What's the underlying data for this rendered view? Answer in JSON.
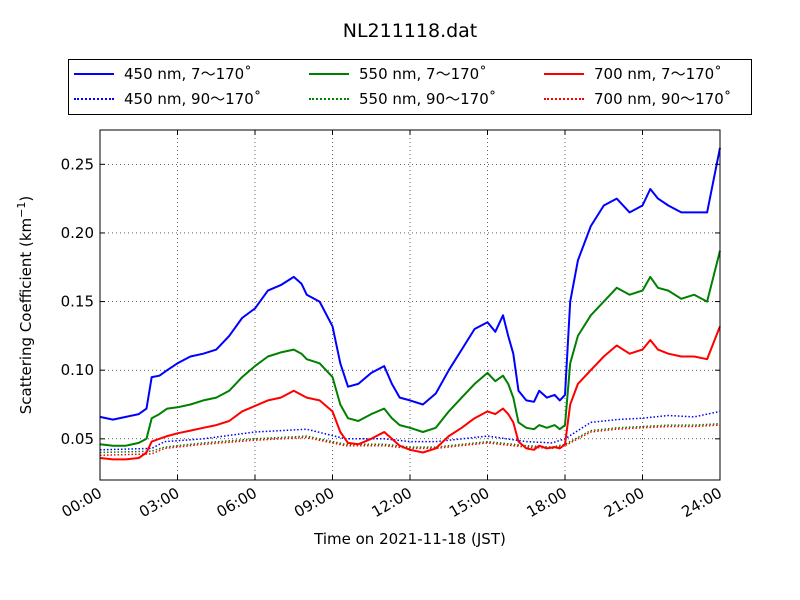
{
  "chart_data": {
    "type": "line",
    "title": "NL211118.dat",
    "xlabel": "Time on 2021-11-18 (JST)",
    "ylabel": "Scattering Coefficient (km",
    "ylabel_sup": "−1",
    "ylabel_end": ")",
    "xlim": [
      0,
      24
    ],
    "ylim": [
      0.02,
      0.275
    ],
    "x_ticks": [
      0,
      3,
      6,
      9,
      12,
      15,
      18,
      21,
      24
    ],
    "x_tick_labels": [
      "00:00",
      "03:00",
      "06:00",
      "09:00",
      "12:00",
      "15:00",
      "18:00",
      "21:00",
      "24:00"
    ],
    "y_ticks": [
      0.05,
      0.1,
      0.15,
      0.2,
      0.25
    ],
    "y_tick_labels": [
      "0.05",
      "0.10",
      "0.15",
      "0.20",
      "0.25"
    ],
    "grid": true,
    "legend_position": "top",
    "series": [
      {
        "name": "450 nm, 7～170˚",
        "color": "#0000ff",
        "style": "solid",
        "x": [
          0,
          0.5,
          1,
          1.5,
          1.8,
          2,
          2.3,
          2.6,
          3,
          3.5,
          4,
          4.5,
          5,
          5.5,
          6,
          6.5,
          7,
          7.5,
          7.8,
          8,
          8.5,
          9,
          9.3,
          9.6,
          10,
          10.5,
          11,
          11.3,
          11.6,
          12,
          12.5,
          13,
          13.5,
          14,
          14.5,
          15,
          15.3,
          15.6,
          15.8,
          16,
          16.2,
          16.5,
          16.8,
          17,
          17.3,
          17.6,
          17.8,
          18,
          18.2,
          18.5,
          19,
          19.5,
          20,
          20.5,
          21,
          21.3,
          21.6,
          22,
          22.5,
          23,
          23.5,
          24
        ],
        "y": [
          0.066,
          0.064,
          0.066,
          0.068,
          0.072,
          0.095,
          0.096,
          0.1,
          0.105,
          0.11,
          0.112,
          0.115,
          0.125,
          0.138,
          0.145,
          0.158,
          0.162,
          0.168,
          0.163,
          0.155,
          0.15,
          0.132,
          0.105,
          0.088,
          0.09,
          0.098,
          0.103,
          0.09,
          0.08,
          0.078,
          0.075,
          0.083,
          0.1,
          0.115,
          0.13,
          0.135,
          0.128,
          0.14,
          0.125,
          0.112,
          0.085,
          0.078,
          0.077,
          0.085,
          0.08,
          0.082,
          0.078,
          0.082,
          0.15,
          0.18,
          0.205,
          0.22,
          0.225,
          0.215,
          0.22,
          0.232,
          0.225,
          0.22,
          0.215,
          0.215,
          0.215,
          0.262
        ]
      },
      {
        "name": "550 nm, 7～170˚",
        "color": "#008000",
        "style": "solid",
        "x": [
          0,
          0.5,
          1,
          1.5,
          1.8,
          2,
          2.3,
          2.6,
          3,
          3.5,
          4,
          4.5,
          5,
          5.5,
          6,
          6.5,
          7,
          7.5,
          7.8,
          8,
          8.5,
          9,
          9.3,
          9.6,
          10,
          10.5,
          11,
          11.3,
          11.6,
          12,
          12.5,
          13,
          13.5,
          14,
          14.5,
          15,
          15.3,
          15.6,
          15.8,
          16,
          16.2,
          16.5,
          16.8,
          17,
          17.3,
          17.6,
          17.8,
          18,
          18.2,
          18.5,
          19,
          19.5,
          20,
          20.5,
          21,
          21.3,
          21.6,
          22,
          22.5,
          23,
          23.5,
          24
        ],
        "y": [
          0.046,
          0.045,
          0.045,
          0.047,
          0.05,
          0.065,
          0.068,
          0.072,
          0.073,
          0.075,
          0.078,
          0.08,
          0.085,
          0.095,
          0.103,
          0.11,
          0.113,
          0.115,
          0.112,
          0.108,
          0.105,
          0.095,
          0.075,
          0.065,
          0.063,
          0.068,
          0.072,
          0.065,
          0.06,
          0.058,
          0.055,
          0.058,
          0.07,
          0.08,
          0.09,
          0.098,
          0.092,
          0.096,
          0.09,
          0.08,
          0.062,
          0.058,
          0.057,
          0.06,
          0.058,
          0.06,
          0.057,
          0.06,
          0.105,
          0.125,
          0.14,
          0.15,
          0.16,
          0.155,
          0.158,
          0.168,
          0.16,
          0.158,
          0.152,
          0.155,
          0.15,
          0.187
        ]
      },
      {
        "name": "700 nm, 7～170˚",
        "color": "#ff0000",
        "style": "solid",
        "x": [
          0,
          0.5,
          1,
          1.5,
          1.8,
          2,
          2.3,
          2.6,
          3,
          3.5,
          4,
          4.5,
          5,
          5.5,
          6,
          6.5,
          7,
          7.5,
          7.8,
          8,
          8.5,
          9,
          9.3,
          9.6,
          10,
          10.5,
          11,
          11.3,
          11.6,
          12,
          12.5,
          13,
          13.5,
          14,
          14.5,
          15,
          15.3,
          15.6,
          15.8,
          16,
          16.2,
          16.5,
          16.8,
          17,
          17.3,
          17.6,
          17.8,
          18,
          18.2,
          18.5,
          19,
          19.5,
          20,
          20.5,
          21,
          21.3,
          21.6,
          22,
          22.5,
          23,
          23.5,
          24
        ],
        "y": [
          0.036,
          0.035,
          0.035,
          0.036,
          0.04,
          0.048,
          0.05,
          0.052,
          0.054,
          0.056,
          0.058,
          0.06,
          0.063,
          0.07,
          0.074,
          0.078,
          0.08,
          0.085,
          0.082,
          0.08,
          0.078,
          0.07,
          0.055,
          0.047,
          0.046,
          0.05,
          0.055,
          0.05,
          0.045,
          0.042,
          0.04,
          0.043,
          0.052,
          0.058,
          0.065,
          0.07,
          0.068,
          0.072,
          0.068,
          0.062,
          0.048,
          0.043,
          0.042,
          0.045,
          0.043,
          0.044,
          0.043,
          0.046,
          0.075,
          0.09,
          0.1,
          0.11,
          0.118,
          0.112,
          0.115,
          0.122,
          0.115,
          0.112,
          0.11,
          0.11,
          0.108,
          0.132
        ]
      },
      {
        "name": "450 nm, 90～170˚",
        "color": "#0000ff",
        "style": "dotted",
        "x": [
          0,
          2,
          2.5,
          4,
          6,
          8,
          9.5,
          11,
          12,
          13,
          15,
          16.5,
          17.5,
          18,
          19,
          20,
          21,
          22,
          23,
          24
        ],
        "y": [
          0.042,
          0.043,
          0.048,
          0.05,
          0.055,
          0.057,
          0.05,
          0.05,
          0.048,
          0.048,
          0.052,
          0.048,
          0.047,
          0.05,
          0.062,
          0.064,
          0.065,
          0.067,
          0.066,
          0.07
        ]
      },
      {
        "name": "550 nm, 90～170˚",
        "color": "#008000",
        "style": "dotted",
        "x": [
          0,
          2,
          2.5,
          4,
          6,
          8,
          9.5,
          11,
          12,
          13,
          15,
          16.5,
          17.5,
          18,
          19,
          20,
          21,
          22,
          23,
          24
        ],
        "y": [
          0.04,
          0.041,
          0.044,
          0.047,
          0.05,
          0.052,
          0.046,
          0.046,
          0.044,
          0.044,
          0.048,
          0.045,
          0.044,
          0.046,
          0.056,
          0.058,
          0.059,
          0.06,
          0.06,
          0.061
        ]
      },
      {
        "name": "700 nm, 90～170˚",
        "color": "#ff0000",
        "style": "dotted",
        "x": [
          0,
          2,
          2.5,
          4,
          6,
          8,
          9.5,
          11,
          12,
          13,
          15,
          16.5,
          17.5,
          18,
          19,
          20,
          21,
          22,
          23,
          24
        ],
        "y": [
          0.038,
          0.039,
          0.043,
          0.046,
          0.049,
          0.051,
          0.045,
          0.045,
          0.043,
          0.043,
          0.047,
          0.044,
          0.043,
          0.045,
          0.055,
          0.057,
          0.058,
          0.059,
          0.059,
          0.06
        ]
      }
    ]
  }
}
